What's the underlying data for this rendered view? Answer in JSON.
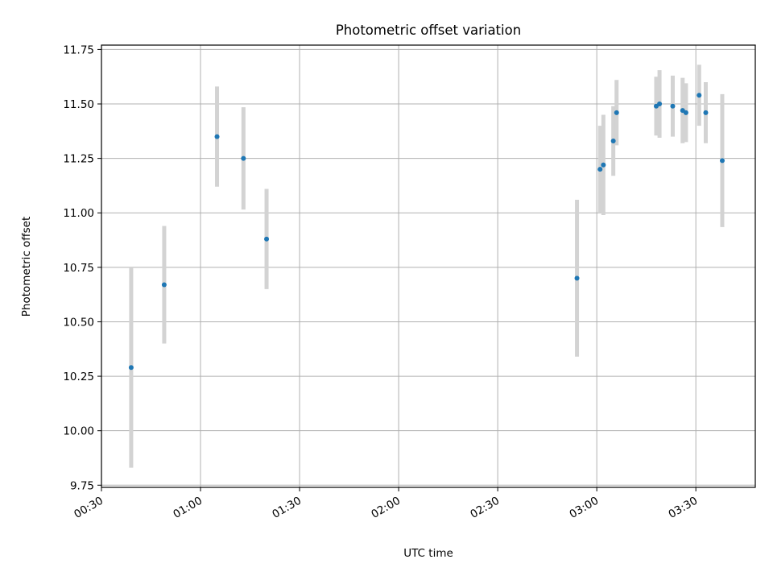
{
  "chart_data": {
    "type": "scatter",
    "title": "Photometric offset variation",
    "xlabel": "UTC time",
    "ylabel": "Photometric offset",
    "x_ticks": [
      "00:30",
      "01:00",
      "01:30",
      "02:00",
      "02:30",
      "03:00",
      "03:30"
    ],
    "y_ticks": [
      "9.75",
      "10.00",
      "10.25",
      "10.50",
      "10.75",
      "11.00",
      "11.25",
      "11.50",
      "11.75"
    ],
    "xlim": [
      "00:30",
      "03:48"
    ],
    "ylim": [
      9.74,
      11.77
    ],
    "grid": true,
    "legend": "none",
    "marker_color": "#1f77b4",
    "errorbar_color": "#d3d3d3",
    "points": [
      {
        "x": "00:39",
        "y": 10.29,
        "err": 0.46
      },
      {
        "x": "00:49",
        "y": 10.67,
        "err": 0.27
      },
      {
        "x": "01:05",
        "y": 11.35,
        "err": 0.23
      },
      {
        "x": "01:13",
        "y": 11.25,
        "err": 0.235
      },
      {
        "x": "01:20",
        "y": 10.88,
        "err": 0.23
      },
      {
        "x": "02:54",
        "y": 10.7,
        "err": 0.36
      },
      {
        "x": "03:01",
        "y": 11.2,
        "err": 0.2
      },
      {
        "x": "03:02",
        "y": 11.22,
        "err": 0.23
      },
      {
        "x": "03:05",
        "y": 11.33,
        "err": 0.16
      },
      {
        "x": "03:06",
        "y": 11.46,
        "err": 0.15
      },
      {
        "x": "03:18",
        "y": 11.49,
        "err": 0.135
      },
      {
        "x": "03:19",
        "y": 11.5,
        "err": 0.155
      },
      {
        "x": "03:23",
        "y": 11.49,
        "err": 0.14
      },
      {
        "x": "03:26",
        "y": 11.47,
        "err": 0.15
      },
      {
        "x": "03:27",
        "y": 11.46,
        "err": 0.135
      },
      {
        "x": "03:31",
        "y": 11.54,
        "err": 0.14
      },
      {
        "x": "03:33",
        "y": 11.46,
        "err": 0.14
      },
      {
        "x": "03:38",
        "y": 11.24,
        "err": 0.305
      }
    ]
  }
}
